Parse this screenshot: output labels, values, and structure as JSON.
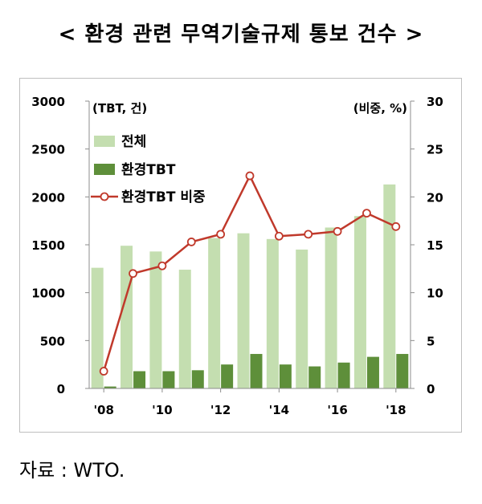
{
  "title": "< 환경 관련 무역기술규제 통보 건수 >",
  "source": "자료 : WTO.",
  "chart_data": {
    "type": "bar",
    "left_axis_unit": "(TBT, 건)",
    "right_axis_unit": "(비중, %)",
    "x_tick_labels": [
      "'08",
      "'10",
      "'12",
      "'14",
      "'16",
      "'18"
    ],
    "x_tick_years": [
      2008,
      2010,
      2012,
      2014,
      2016,
      2018
    ],
    "y_left": {
      "min": 0,
      "max": 3000,
      "ticks": [
        "0",
        "500",
        "1000",
        "1500",
        "2000",
        "2500",
        "3000"
      ]
    },
    "y_right": {
      "min": 0,
      "max": 30,
      "ticks": [
        "0",
        "5",
        "10",
        "15",
        "20",
        "25",
        "30"
      ]
    },
    "categories": [
      2008,
      2009,
      2010,
      2011,
      2012,
      2013,
      2014,
      2015,
      2016,
      2017,
      2018
    ],
    "series": [
      {
        "name": "전체",
        "type": "bar",
        "axis": "left",
        "color": "#c4deb0",
        "values": [
          1260,
          1490,
          1430,
          1240,
          1570,
          1620,
          1560,
          1450,
          1680,
          1800,
          2130
        ]
      },
      {
        "name": "환경TBT",
        "type": "bar",
        "axis": "left",
        "color": "#5e8f3a",
        "values": [
          20,
          180,
          180,
          190,
          250,
          360,
          250,
          230,
          270,
          330,
          360
        ]
      },
      {
        "name": "환경TBT 비중",
        "type": "line",
        "axis": "right",
        "color": "#c0392b",
        "values": [
          1.8,
          12.0,
          12.8,
          15.3,
          16.1,
          22.2,
          15.9,
          16.1,
          16.4,
          18.3,
          16.9
        ]
      }
    ],
    "legend_position": "top-left",
    "grid": false
  }
}
